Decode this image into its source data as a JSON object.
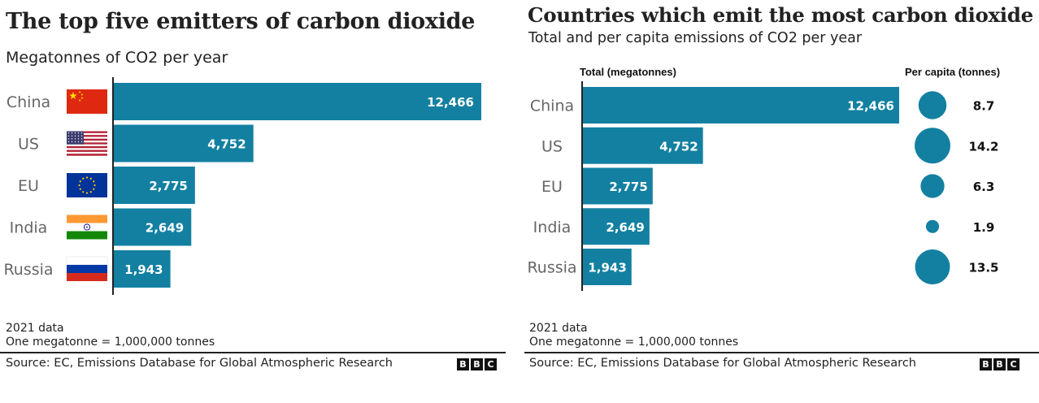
{
  "left": {
    "title": "The top five emitters of carbon dioxide",
    "subtitle": "Megatonnes of CO2 per year",
    "note_year": "2021 data",
    "note_unit": "One megatonne = 1,000,000 tonnes",
    "source": "Source: EC, Emissions Database for Global Atmospheric Research",
    "logo": [
      "B",
      "B",
      "C"
    ]
  },
  "right": {
    "title": "Countries which emit the most carbon dioxide",
    "subtitle": "Total and per capita emissions of CO2 per year",
    "col_total": "Total (megatonnes)",
    "col_percapita": "Per capita (tonnes)",
    "note_year": "2021 data",
    "note_unit": "One megatonne = 1,000,000 tonnes",
    "source": "Source: EC, Emissions Database for Global Atmospheric Research",
    "logo": [
      "B",
      "B",
      "C"
    ]
  },
  "colors": {
    "bar": "#1380A1",
    "axis": "#222222",
    "label": "#666666"
  },
  "chart_data": [
    {
      "type": "bar",
      "orientation": "horizontal",
      "title": "The top five emitters of carbon dioxide",
      "subtitle": "Megatonnes of CO2 per year",
      "categories": [
        "China",
        "US",
        "EU",
        "India",
        "Russia"
      ],
      "values": [
        12466,
        4752,
        2775,
        2649,
        1943
      ],
      "value_labels": [
        "12,466",
        "4,752",
        "2,775",
        "2,649",
        "1,943"
      ],
      "flags": [
        "flag-china-icon",
        "flag-us-icon",
        "flag-eu-icon",
        "flag-india-icon",
        "flag-russia-icon"
      ],
      "xlim": [
        0,
        12466
      ],
      "grid": false
    },
    {
      "type": "bar",
      "orientation": "horizontal",
      "title": "Countries which emit the most carbon dioxide",
      "subtitle": "Total and per capita emissions of CO2 per year",
      "categories": [
        "China",
        "US",
        "EU",
        "India",
        "Russia"
      ],
      "series": [
        {
          "name": "Total (megatonnes)",
          "values": [
            12466,
            4752,
            2775,
            2649,
            1943
          ],
          "labels": [
            "12,466",
            "4,752",
            "2,775",
            "2,649",
            "1,943"
          ]
        },
        {
          "name": "Per capita (tonnes)",
          "values": [
            8.7,
            14.2,
            6.3,
            1.9,
            13.5
          ],
          "labels": [
            "8.7",
            "14.2",
            "6.3",
            "1.9",
            "13.5"
          ],
          "encoding": "circle-area"
        }
      ],
      "xlim": [
        0,
        12466
      ],
      "grid": false
    }
  ]
}
